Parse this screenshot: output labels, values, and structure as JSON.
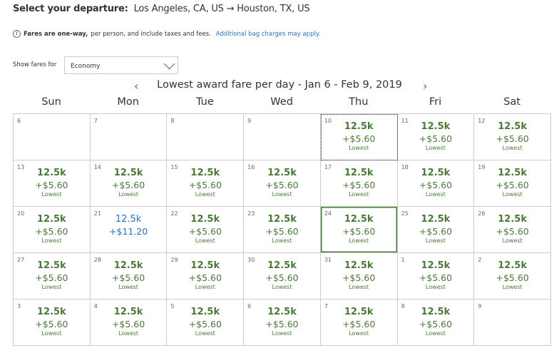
{
  "header": {
    "label": "Select your departure:",
    "route": "Los Angeles, CA, US → Houston, TX, US"
  },
  "notice": {
    "bold": "Fares are one-way,",
    "text": " per person, and include taxes and fees.",
    "link": "Additional bag charges may apply."
  },
  "fare_class": {
    "label": "Show fares for",
    "value": "Economy"
  },
  "calendar": {
    "title": "Lowest award fare per day - Jan 6 - Feb 9, 2019",
    "prev": "‹",
    "next": "›",
    "days": [
      "Sun",
      "Mon",
      "Tue",
      "Wed",
      "Thu",
      "Fri",
      "Sat"
    ],
    "colors": {
      "lowest": "#4a7a3a",
      "other": "#2a73c0"
    },
    "cells": [
      {
        "d": "6"
      },
      {
        "d": "7"
      },
      {
        "d": "8"
      },
      {
        "d": "9"
      },
      {
        "d": "10",
        "m": "12.5k",
        "t": "+$5.60",
        "l": "Lowest",
        "focus": true
      },
      {
        "d": "11",
        "m": "12.5k",
        "t": "+$5.60",
        "l": "Lowest"
      },
      {
        "d": "12",
        "m": "12.5k",
        "t": "+$5.60",
        "l": "Lowest"
      },
      {
        "d": "13",
        "m": "12.5k",
        "t": "+$5.60",
        "l": "Lowest"
      },
      {
        "d": "14",
        "m": "12.5k",
        "t": "+$5.60",
        "l": "Lowest"
      },
      {
        "d": "15",
        "m": "12.5k",
        "t": "+$5.60",
        "l": "Lowest"
      },
      {
        "d": "16",
        "m": "12.5k",
        "t": "+$5.60",
        "l": "Lowest"
      },
      {
        "d": "17",
        "m": "12.5k",
        "t": "+$5.60",
        "l": "Lowest"
      },
      {
        "d": "18",
        "m": "12.5k",
        "t": "+$5.60",
        "l": "Lowest"
      },
      {
        "d": "19",
        "m": "12.5k",
        "t": "+$5.60",
        "l": "Lowest"
      },
      {
        "d": "20",
        "m": "12.5k",
        "t": "+$5.60",
        "l": "Lowest"
      },
      {
        "d": "21",
        "m": "12.5k",
        "t": "+$11.20",
        "blue": true
      },
      {
        "d": "22",
        "m": "12.5k",
        "t": "+$5.60",
        "l": "Lowest"
      },
      {
        "d": "23",
        "m": "12.5k",
        "t": "+$5.60",
        "l": "Lowest"
      },
      {
        "d": "24",
        "m": "12.5k",
        "t": "+$5.60",
        "l": "Lowest",
        "selected": true
      },
      {
        "d": "25",
        "m": "12.5k",
        "t": "+$5.60",
        "l": "Lowest"
      },
      {
        "d": "26",
        "m": "12.5k",
        "t": "+$5.60",
        "l": "Lowest"
      },
      {
        "d": "27",
        "m": "12.5k",
        "t": "+$5.60",
        "l": "Lowest"
      },
      {
        "d": "28",
        "m": "12.5k",
        "t": "+$5.60",
        "l": "Lowest"
      },
      {
        "d": "29",
        "m": "12.5k",
        "t": "+$5.60",
        "l": "Lowest"
      },
      {
        "d": "30",
        "m": "12.5k",
        "t": "+$5.60",
        "l": "Lowest"
      },
      {
        "d": "31",
        "m": "12.5k",
        "t": "+$5.60",
        "l": "Lowest"
      },
      {
        "d": "1",
        "m": "12.5k",
        "t": "+$5.60",
        "l": "Lowest"
      },
      {
        "d": "2",
        "m": "12.5k",
        "t": "+$5.60",
        "l": "Lowest"
      },
      {
        "d": "3",
        "m": "12.5k",
        "t": "+$5.60",
        "l": "Lowest"
      },
      {
        "d": "4",
        "m": "12.5k",
        "t": "+$5.60",
        "l": "Lowest"
      },
      {
        "d": "5",
        "m": "12.5k",
        "t": "+$5.60",
        "l": "Lowest"
      },
      {
        "d": "6",
        "m": "12.5k",
        "t": "+$5.60",
        "l": "Lowest"
      },
      {
        "d": "7",
        "m": "12.5k",
        "t": "+$5.60",
        "l": "Lowest"
      },
      {
        "d": "8",
        "m": "12.5k",
        "t": "+$5.60",
        "l": "Lowest"
      },
      {
        "d": "9"
      }
    ]
  }
}
